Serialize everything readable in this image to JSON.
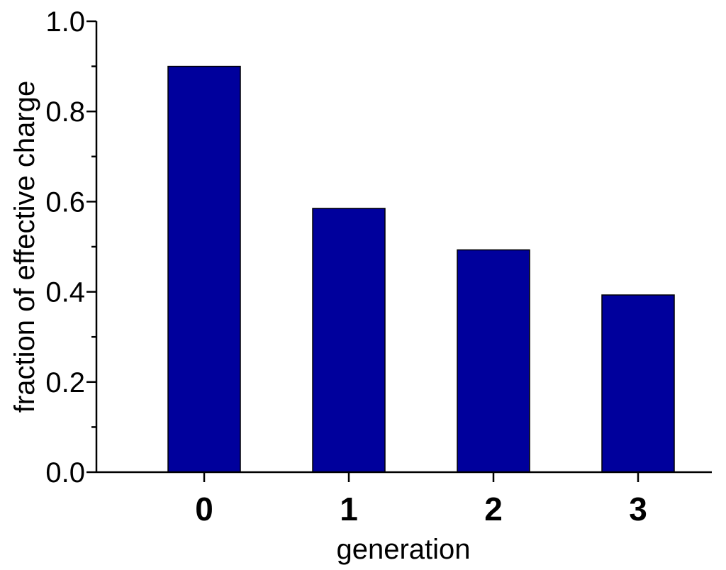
{
  "chart_data": {
    "type": "bar",
    "categories": [
      "0",
      "1",
      "2",
      "3"
    ],
    "values": [
      0.9,
      0.585,
      0.493,
      0.393
    ],
    "title": "",
    "xlabel": "generation",
    "ylabel": "fraction of effective charge",
    "ylim": [
      0,
      1.0
    ],
    "yticks": [
      "0.0",
      "0.2",
      "0.4",
      "0.6",
      "0.8",
      "1.0"
    ],
    "grid": false,
    "bar_color": "#00009c"
  }
}
